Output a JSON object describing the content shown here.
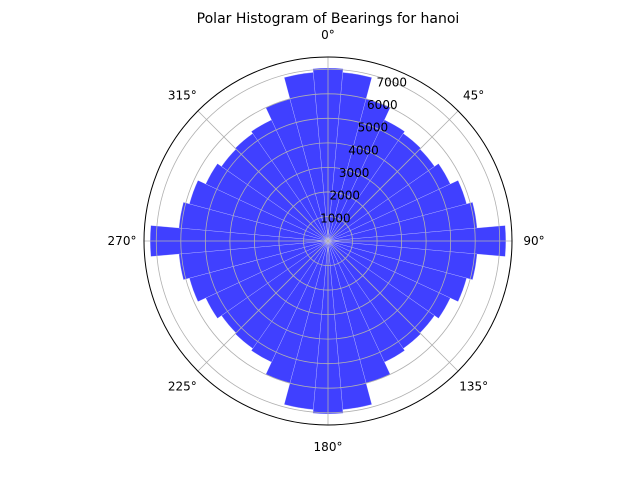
{
  "chart_data": {
    "type": "bar",
    "subtype": "polar-histogram",
    "title": "Polar Histogram of Bearings for hanoi",
    "theta_zero_location": "N",
    "theta_direction": "clockwise",
    "bin_width_deg": 10,
    "bin_centers_deg": [
      0,
      10,
      20,
      30,
      40,
      50,
      60,
      70,
      80,
      90,
      100,
      110,
      120,
      130,
      140,
      150,
      160,
      170,
      180,
      190,
      200,
      210,
      220,
      230,
      240,
      250,
      260,
      270,
      280,
      290,
      300,
      310,
      320,
      330,
      340,
      350
    ],
    "values": [
      7050,
      6900,
      6000,
      5450,
      5350,
      5300,
      5500,
      5850,
      6100,
      7250,
      6100,
      5850,
      5500,
      5300,
      5350,
      5450,
      6000,
      6900,
      7050,
      6900,
      6000,
      5450,
      5350,
      5300,
      5500,
      5850,
      6100,
      7250,
      6100,
      5850,
      5500,
      5300,
      5350,
      5450,
      6000,
      6900
    ],
    "bar_color": "#4040ff",
    "radial_ticks": [
      1000,
      2000,
      3000,
      4000,
      5000,
      6000,
      7000
    ],
    "radial_max": 7500,
    "angle_ticks": [
      "0°",
      "45°",
      "90°",
      "135°",
      "180°",
      "225°",
      "270°",
      "315°"
    ],
    "grid": true
  }
}
